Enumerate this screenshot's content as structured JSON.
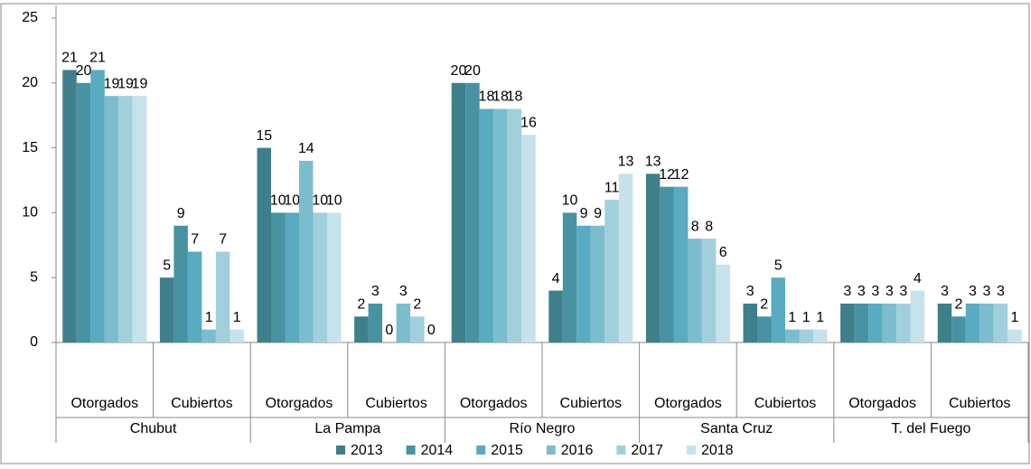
{
  "chart_data": {
    "type": "bar",
    "categories": [
      "Otorgados",
      "Cubiertos",
      "Otorgados",
      "Cubiertos",
      "Otorgados",
      "Cubiertos",
      "Otorgados",
      "Cubiertos",
      "Otorgados",
      "Cubiertos"
    ],
    "groups": [
      "Chubut",
      "La Pampa",
      "Río Negro",
      "Santa Cruz",
      "T. del Fuego"
    ],
    "series": [
      {
        "name": "2013",
        "color": "#3f7e8b",
        "values": [
          21,
          5,
          15,
          2,
          20,
          4,
          13,
          3,
          3,
          3
        ]
      },
      {
        "name": "2014",
        "color": "#4892a2",
        "values": [
          20,
          9,
          10,
          3,
          20,
          10,
          12,
          2,
          3,
          2
        ]
      },
      {
        "name": "2015",
        "color": "#58abc1",
        "values": [
          21,
          7,
          10,
          0,
          18,
          9,
          12,
          5,
          3,
          3
        ]
      },
      {
        "name": "2016",
        "color": "#7bbdcf",
        "values": [
          19,
          1,
          14,
          3,
          18,
          9,
          8,
          1,
          3,
          3
        ]
      },
      {
        "name": "2017",
        "color": "#a2cfdc",
        "values": [
          19,
          7,
          10,
          2,
          18,
          11,
          8,
          1,
          3,
          3
        ]
      },
      {
        "name": "2018",
        "color": "#c6e2ea",
        "values": [
          19,
          1,
          10,
          0,
          16,
          13,
          6,
          1,
          4,
          1
        ]
      }
    ],
    "ylim": [
      0,
      25
    ],
    "yticks": [
      0,
      5,
      10,
      15,
      20,
      25
    ],
    "grid": false,
    "legend": "bottom"
  }
}
